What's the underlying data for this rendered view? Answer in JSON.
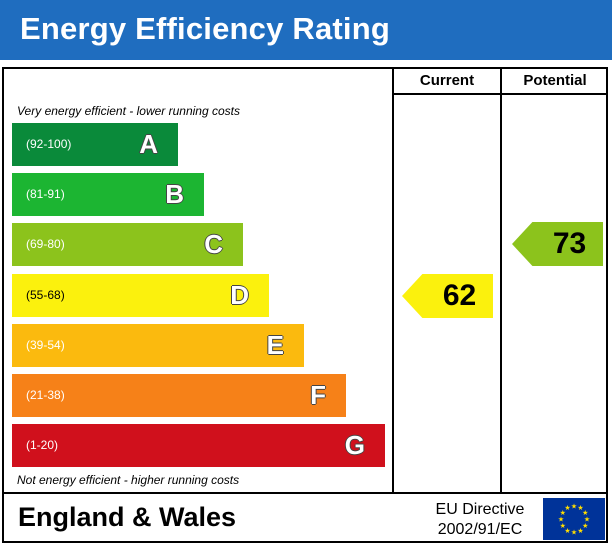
{
  "title": "Energy Efficiency Rating",
  "columns": {
    "current": "Current",
    "potential": "Potential"
  },
  "notes": {
    "top": "Very energy efficient - lower running costs",
    "bottom": "Not energy efficient - higher running costs"
  },
  "chart_data": {
    "type": "bar",
    "title": "Energy Efficiency Rating",
    "categories": [
      "A",
      "B",
      "C",
      "D",
      "E",
      "F",
      "G"
    ],
    "bands": [
      {
        "letter": "A",
        "range": "(92-100)",
        "min": 92,
        "max": 100,
        "color": "#0a8a3a"
      },
      {
        "letter": "B",
        "range": "(81-91)",
        "min": 81,
        "max": 91,
        "color": "#1cb532"
      },
      {
        "letter": "C",
        "range": "(69-80)",
        "min": 69,
        "max": 80,
        "color": "#8cc31c"
      },
      {
        "letter": "D",
        "range": "(55-68)",
        "min": 55,
        "max": 68,
        "color": "#fbf10d"
      },
      {
        "letter": "E",
        "range": "(39-54)",
        "min": 39,
        "max": 54,
        "color": "#fbba0e"
      },
      {
        "letter": "F",
        "range": "(21-38)",
        "min": 21,
        "max": 38,
        "color": "#f68118"
      },
      {
        "letter": "G",
        "range": "(1-20)",
        "min": 1,
        "max": 20,
        "color": "#d0101c"
      }
    ],
    "series": [
      {
        "name": "Current",
        "value": 62,
        "band": "D",
        "color": "#fbf10d"
      },
      {
        "name": "Potential",
        "value": 73,
        "band": "C",
        "color": "#8cc31c"
      }
    ]
  },
  "footer": {
    "region": "England & Wales",
    "directive_line1": "EU Directive",
    "directive_line2": "2002/91/EC"
  },
  "colors": {
    "header_bg": "#1f6dbf",
    "eu_flag_bg": "#003399",
    "eu_star": "#ffdd00"
  }
}
